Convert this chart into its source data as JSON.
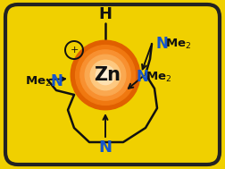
{
  "bg_color": "#F0D000",
  "border_color": "#222222",
  "zn_label": "Zn",
  "h_label": "H",
  "plus_label": "+",
  "n_top_label": "N",
  "blue_color": "#1555CC",
  "black_color": "#111111",
  "orange_colors": [
    "#E06000",
    "#F07810",
    "#F89030",
    "#FAA850",
    "#FDC880",
    "#FEE0B0",
    "#FFF0D8"
  ],
  "orange_radii": [
    1.02,
    0.88,
    0.74,
    0.6,
    0.44,
    0.28,
    0.14
  ]
}
